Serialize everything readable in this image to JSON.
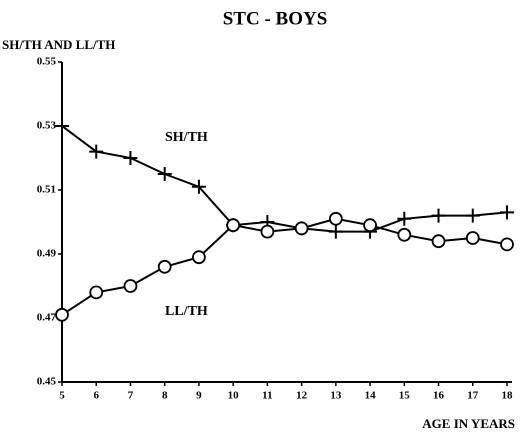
{
  "chart_data": {
    "type": "line",
    "title": "STC - BOYS",
    "y_label": "SH/TH AND LL/TH",
    "x_label": "AGE IN YEARS",
    "x": [
      5,
      6,
      7,
      8,
      9,
      10,
      11,
      12,
      13,
      14,
      15,
      16,
      17,
      18
    ],
    "xlim": [
      5,
      18
    ],
    "xticks": [
      5,
      6,
      7,
      8,
      9,
      10,
      11,
      12,
      13,
      14,
      15,
      16,
      17,
      18
    ],
    "ylim": [
      0.45,
      0.55
    ],
    "yticks": [
      0.45,
      0.47,
      0.49,
      0.51,
      0.53,
      0.55
    ],
    "series": [
      {
        "name": "SH/TH",
        "color": "#000000",
        "marker": "plus",
        "values": [
          0.53,
          0.522,
          0.52,
          0.515,
          0.511,
          0.499,
          0.5,
          0.498,
          0.497,
          0.497,
          0.501,
          0.502,
          0.502,
          0.503
        ]
      },
      {
        "name": "LL/TH",
        "color": "#000000",
        "marker": "circle",
        "values": [
          0.471,
          0.478,
          0.48,
          0.486,
          0.489,
          0.499,
          0.497,
          0.498,
          0.501,
          0.499,
          0.496,
          0.494,
          0.495,
          0.493
        ]
      }
    ]
  }
}
